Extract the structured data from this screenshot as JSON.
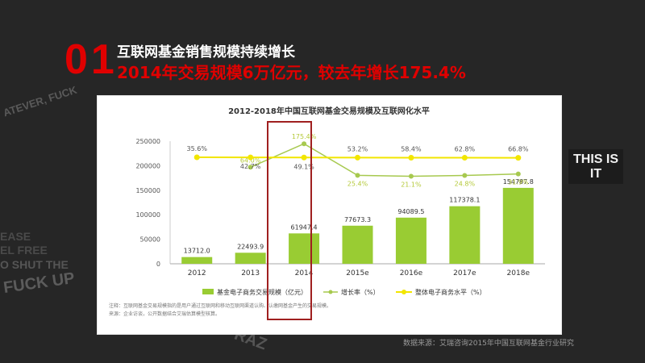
{
  "header": {
    "section_number": "01",
    "title": "互联网基金销售规模持续增长",
    "subtitle": "2014年交易规模6万亿元，较去年增长175.4%"
  },
  "background_text": [
    "ATEVER, FUCK",
    "EASE",
    "EL FREE",
    "O SHUT THE",
    "FUCK UP",
    "THIS IS IT",
    "RAZ"
  ],
  "chart_data": {
    "title": "2012-2018年中国互联网基金交易规模及互联网化水平",
    "categories": [
      "2012",
      "2013",
      "2014",
      "2015e",
      "2016e",
      "2017e",
      "2018e"
    ],
    "yaxis_ticks": [
      "0",
      "50000",
      "100000",
      "150000",
      "200000",
      "250000"
    ],
    "ylim": [
      0,
      250000
    ],
    "series": [
      {
        "name": "基金电子商务交易规模（亿元）",
        "type": "bar",
        "values": [
          13712.0,
          22493.9,
          61947.4,
          77673.3,
          94089.5,
          117378.1,
          154787.8
        ],
        "labels": [
          "13712.0",
          "22493.9",
          "61947.4",
          "77673.3",
          "94089.5",
          "117378.1",
          "154787.8"
        ],
        "color": "#99cc33"
      },
      {
        "name": "增长率（%）",
        "type": "line",
        "values": [
          null,
          64.0,
          175.4,
          25.4,
          21.1,
          24.8,
          31.9
        ],
        "labels": [
          "",
          "64.0%",
          "175.4%",
          "25.4%",
          "21.1%",
          "24.8%",
          "31.9%"
        ],
        "color": "#a7c94f"
      },
      {
        "name": "整体电子商务水平（%）",
        "type": "line",
        "values": [
          35.6,
          42.7,
          49.1,
          53.2,
          58.4,
          62.8,
          66.8
        ],
        "labels": [
          "35.6%",
          "42.7%",
          "49.1%",
          "53.2%",
          "58.4%",
          "62.8%",
          "66.8%"
        ],
        "color": "#f2e600"
      }
    ],
    "notes": [
      "注释：互联网基金交易规模指的是用户通过互联网和移动互联网渠道认购、认缴网基金产生的交易规模。",
      "来源：企业访谈，公开数据结合艾瑞估算模型核算。"
    ],
    "highlight_category": "2014",
    "type": "bar"
  },
  "source": "数据来源：艾瑞咨询2015年中国互联网基金行业研究"
}
